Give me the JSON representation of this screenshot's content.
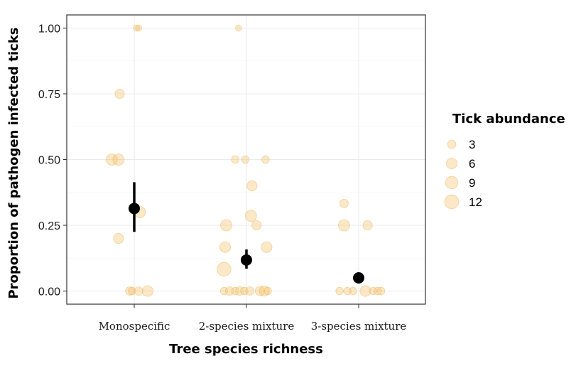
{
  "chart_data": {
    "type": "scatter",
    "title": "",
    "xlabel": "Tree species richness",
    "ylabel": "Proportion of pathogen infected ticks",
    "categories": [
      "Monospecific",
      "2-species mixture",
      "3-species mixture"
    ],
    "y_ticks": [
      "0.00",
      "0.25",
      "0.50",
      "0.75",
      "1.00"
    ],
    "ylim": [
      -0.05,
      1.05
    ],
    "grid": true,
    "colors": {
      "points": "#f5c26b",
      "points_stroke": "#e6a84a",
      "estimate": "#000000",
      "grid": "#ebebeb"
    },
    "legend": {
      "title": "Tick abundance",
      "position": "right",
      "entries": [
        {
          "label": "3",
          "value": 3
        },
        {
          "label": "6",
          "value": 6
        },
        {
          "label": "9",
          "value": 9
        },
        {
          "label": "12",
          "value": 12
        }
      ]
    },
    "raw_points": [
      {
        "group": 0,
        "jitter": 0.02,
        "y": 1.0,
        "size": 1
      },
      {
        "group": 0,
        "jitter": 0.04,
        "y": 1.0,
        "size": 1
      },
      {
        "group": 0,
        "jitter": -0.13,
        "y": 0.75,
        "size": 4
      },
      {
        "group": 0,
        "jitter": -0.2,
        "y": 0.5,
        "size": 7
      },
      {
        "group": 0,
        "jitter": -0.14,
        "y": 0.5,
        "size": 7
      },
      {
        "group": 0,
        "jitter": 0.05,
        "y": 0.3,
        "size": 7
      },
      {
        "group": 0,
        "jitter": -0.14,
        "y": 0.2,
        "size": 5
      },
      {
        "group": 0,
        "jitter": -0.04,
        "y": 0.0,
        "size": 3
      },
      {
        "group": 0,
        "jitter": -0.02,
        "y": 0.0,
        "size": 2
      },
      {
        "group": 0,
        "jitter": 0.04,
        "y": 0.0,
        "size": 3
      },
      {
        "group": 0,
        "jitter": 0.12,
        "y": 0.0,
        "size": 6
      },
      {
        "group": 1,
        "jitter": -0.07,
        "y": 1.0,
        "size": 1
      },
      {
        "group": 1,
        "jitter": -0.1,
        "y": 0.5,
        "size": 2
      },
      {
        "group": 1,
        "jitter": -0.01,
        "y": 0.5,
        "size": 2
      },
      {
        "group": 1,
        "jitter": 0.17,
        "y": 0.5,
        "size": 2
      },
      {
        "group": 1,
        "jitter": 0.05,
        "y": 0.4,
        "size": 5
      },
      {
        "group": 1,
        "jitter": 0.04,
        "y": 0.286,
        "size": 7
      },
      {
        "group": 1,
        "jitter": 0.09,
        "y": 0.25,
        "size": 4
      },
      {
        "group": 1,
        "jitter": -0.18,
        "y": 0.25,
        "size": 7
      },
      {
        "group": 1,
        "jitter": -0.19,
        "y": 0.167,
        "size": 6
      },
      {
        "group": 1,
        "jitter": 0.18,
        "y": 0.167,
        "size": 6
      },
      {
        "group": 1,
        "jitter": -0.2,
        "y": 0.083,
        "size": 12
      },
      {
        "group": 1,
        "jitter": -0.2,
        "y": 0.0,
        "size": 2
      },
      {
        "group": 1,
        "jitter": -0.15,
        "y": 0.0,
        "size": 3
      },
      {
        "group": 1,
        "jitter": -0.1,
        "y": 0.0,
        "size": 2
      },
      {
        "group": 1,
        "jitter": -0.06,
        "y": 0.0,
        "size": 3
      },
      {
        "group": 1,
        "jitter": -0.02,
        "y": 0.0,
        "size": 2
      },
      {
        "group": 1,
        "jitter": 0.03,
        "y": 0.0,
        "size": 3
      },
      {
        "group": 1,
        "jitter": 0.12,
        "y": 0.0,
        "size": 4
      },
      {
        "group": 1,
        "jitter": 0.16,
        "y": 0.0,
        "size": 5
      },
      {
        "group": 1,
        "jitter": 0.19,
        "y": 0.0,
        "size": 2
      },
      {
        "group": 2,
        "jitter": -0.13,
        "y": 0.333,
        "size": 3
      },
      {
        "group": 2,
        "jitter": -0.13,
        "y": 0.25,
        "size": 7
      },
      {
        "group": 2,
        "jitter": 0.08,
        "y": 0.25,
        "size": 4
      },
      {
        "group": 2,
        "jitter": -0.17,
        "y": 0.0,
        "size": 2
      },
      {
        "group": 2,
        "jitter": -0.1,
        "y": 0.0,
        "size": 2
      },
      {
        "group": 2,
        "jitter": -0.05,
        "y": 0.0,
        "size": 2
      },
      {
        "group": 2,
        "jitter": 0.06,
        "y": 0.0,
        "size": 6
      },
      {
        "group": 2,
        "jitter": 0.13,
        "y": 0.0,
        "size": 2
      },
      {
        "group": 2,
        "jitter": 0.17,
        "y": 0.0,
        "size": 2
      },
      {
        "group": 2,
        "jitter": 0.2,
        "y": 0.0,
        "size": 2
      }
    ],
    "estimates": [
      {
        "category": "Monospecific",
        "mean": 0.314,
        "lower": 0.225,
        "upper": 0.414
      },
      {
        "category": "2-species mixture",
        "mean": 0.118,
        "lower": 0.085,
        "upper": 0.158
      },
      {
        "category": "3-species mixture",
        "mean": 0.05,
        "lower": 0.032,
        "upper": 0.069
      }
    ]
  }
}
